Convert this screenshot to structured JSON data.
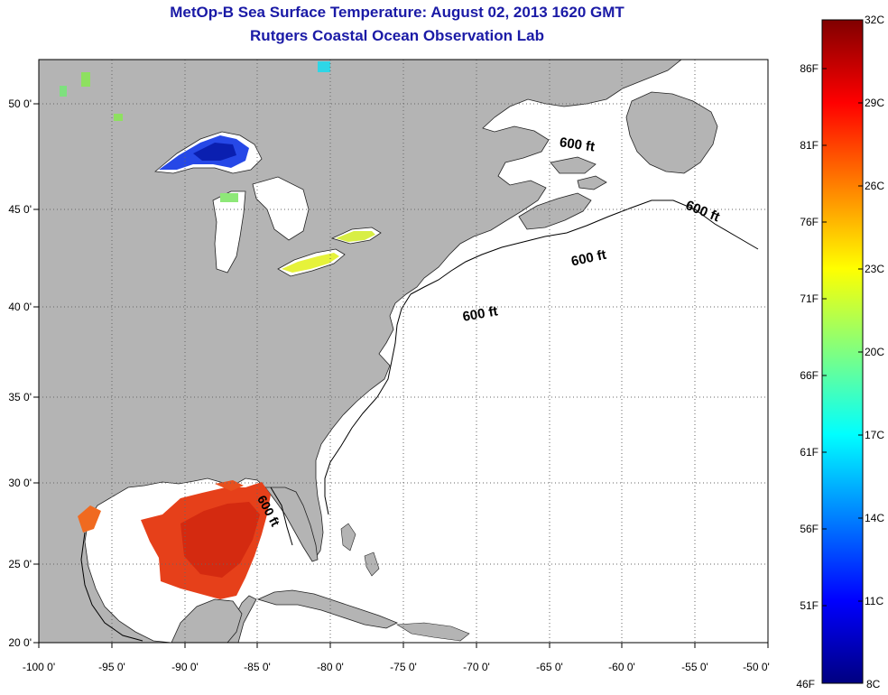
{
  "header": {
    "title": "MetOp-B Sea Surface Temperature:  August 02, 2013 1620 GMT",
    "subtitle": "Rutgers Coastal Ocean Observation Lab"
  },
  "map": {
    "lon_labels": [
      "-100 0'",
      "-95 0'",
      "-90 0'",
      "-85 0'",
      "-80 0'",
      "-75 0'",
      "-70 0'",
      "-65 0'",
      "-60 0'",
      "-55 0'",
      "-50 0'"
    ],
    "lat_labels": [
      "50 0'",
      "45 0'",
      "40 0'",
      "35 0'",
      "30 0'",
      "25 0'",
      "20 0'"
    ],
    "contour_labels": [
      "600 ft",
      "600 ft",
      "600 ft",
      "600 ft",
      "600 ft"
    ],
    "colors": {
      "land": "#b4b4b4",
      "ocean": "#ffffff",
      "grid": "#666666",
      "label": "#000000"
    }
  },
  "colorbar": {
    "celsius_labels": [
      "32C",
      "29C",
      "26C",
      "23C",
      "20C",
      "17C",
      "14C",
      "11C",
      "8C"
    ],
    "fahrenheit_labels": [
      "86F",
      "81F",
      "76F",
      "71F",
      "66F",
      "61F",
      "56F",
      "51F",
      "46F"
    ],
    "gradient_colors": [
      "#800000",
      "#ff0000",
      "#ff8000",
      "#ffff00",
      "#80ff80",
      "#00ffff",
      "#0080ff",
      "#0000ff",
      "#000080"
    ]
  }
}
